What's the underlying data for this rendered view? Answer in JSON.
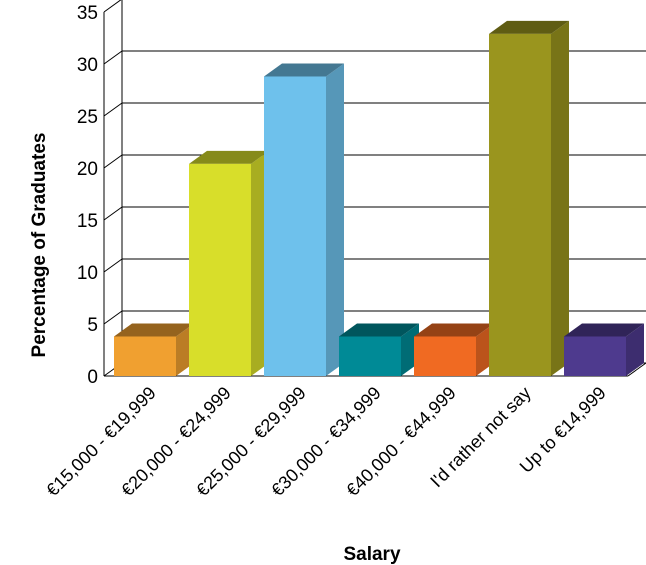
{
  "chart_data": {
    "type": "bar",
    "title": "",
    "xlabel": "Salary",
    "ylabel": "Percentage of Graduates",
    "ylim": [
      0,
      35
    ],
    "yticks": [
      0,
      5,
      10,
      15,
      20,
      25,
      30,
      35
    ],
    "grid": true,
    "legend": "none",
    "categories": [
      "€15,000 - €19,999",
      "€20,000 - €24,999",
      "€25,000 - €29,999",
      "€30,000 - €34,999",
      "€40,000 - €44,999",
      "I'd rather not say",
      "Up to €14,999"
    ],
    "values": [
      3.8,
      20.4,
      28.8,
      3.8,
      3.8,
      32.9,
      3.8
    ],
    "colors": [
      "#F0A030",
      "#D8DE2A",
      "#6EC1EC",
      "#008A96",
      "#F06A22",
      "#9A951E",
      "#4E3A8E"
    ]
  }
}
